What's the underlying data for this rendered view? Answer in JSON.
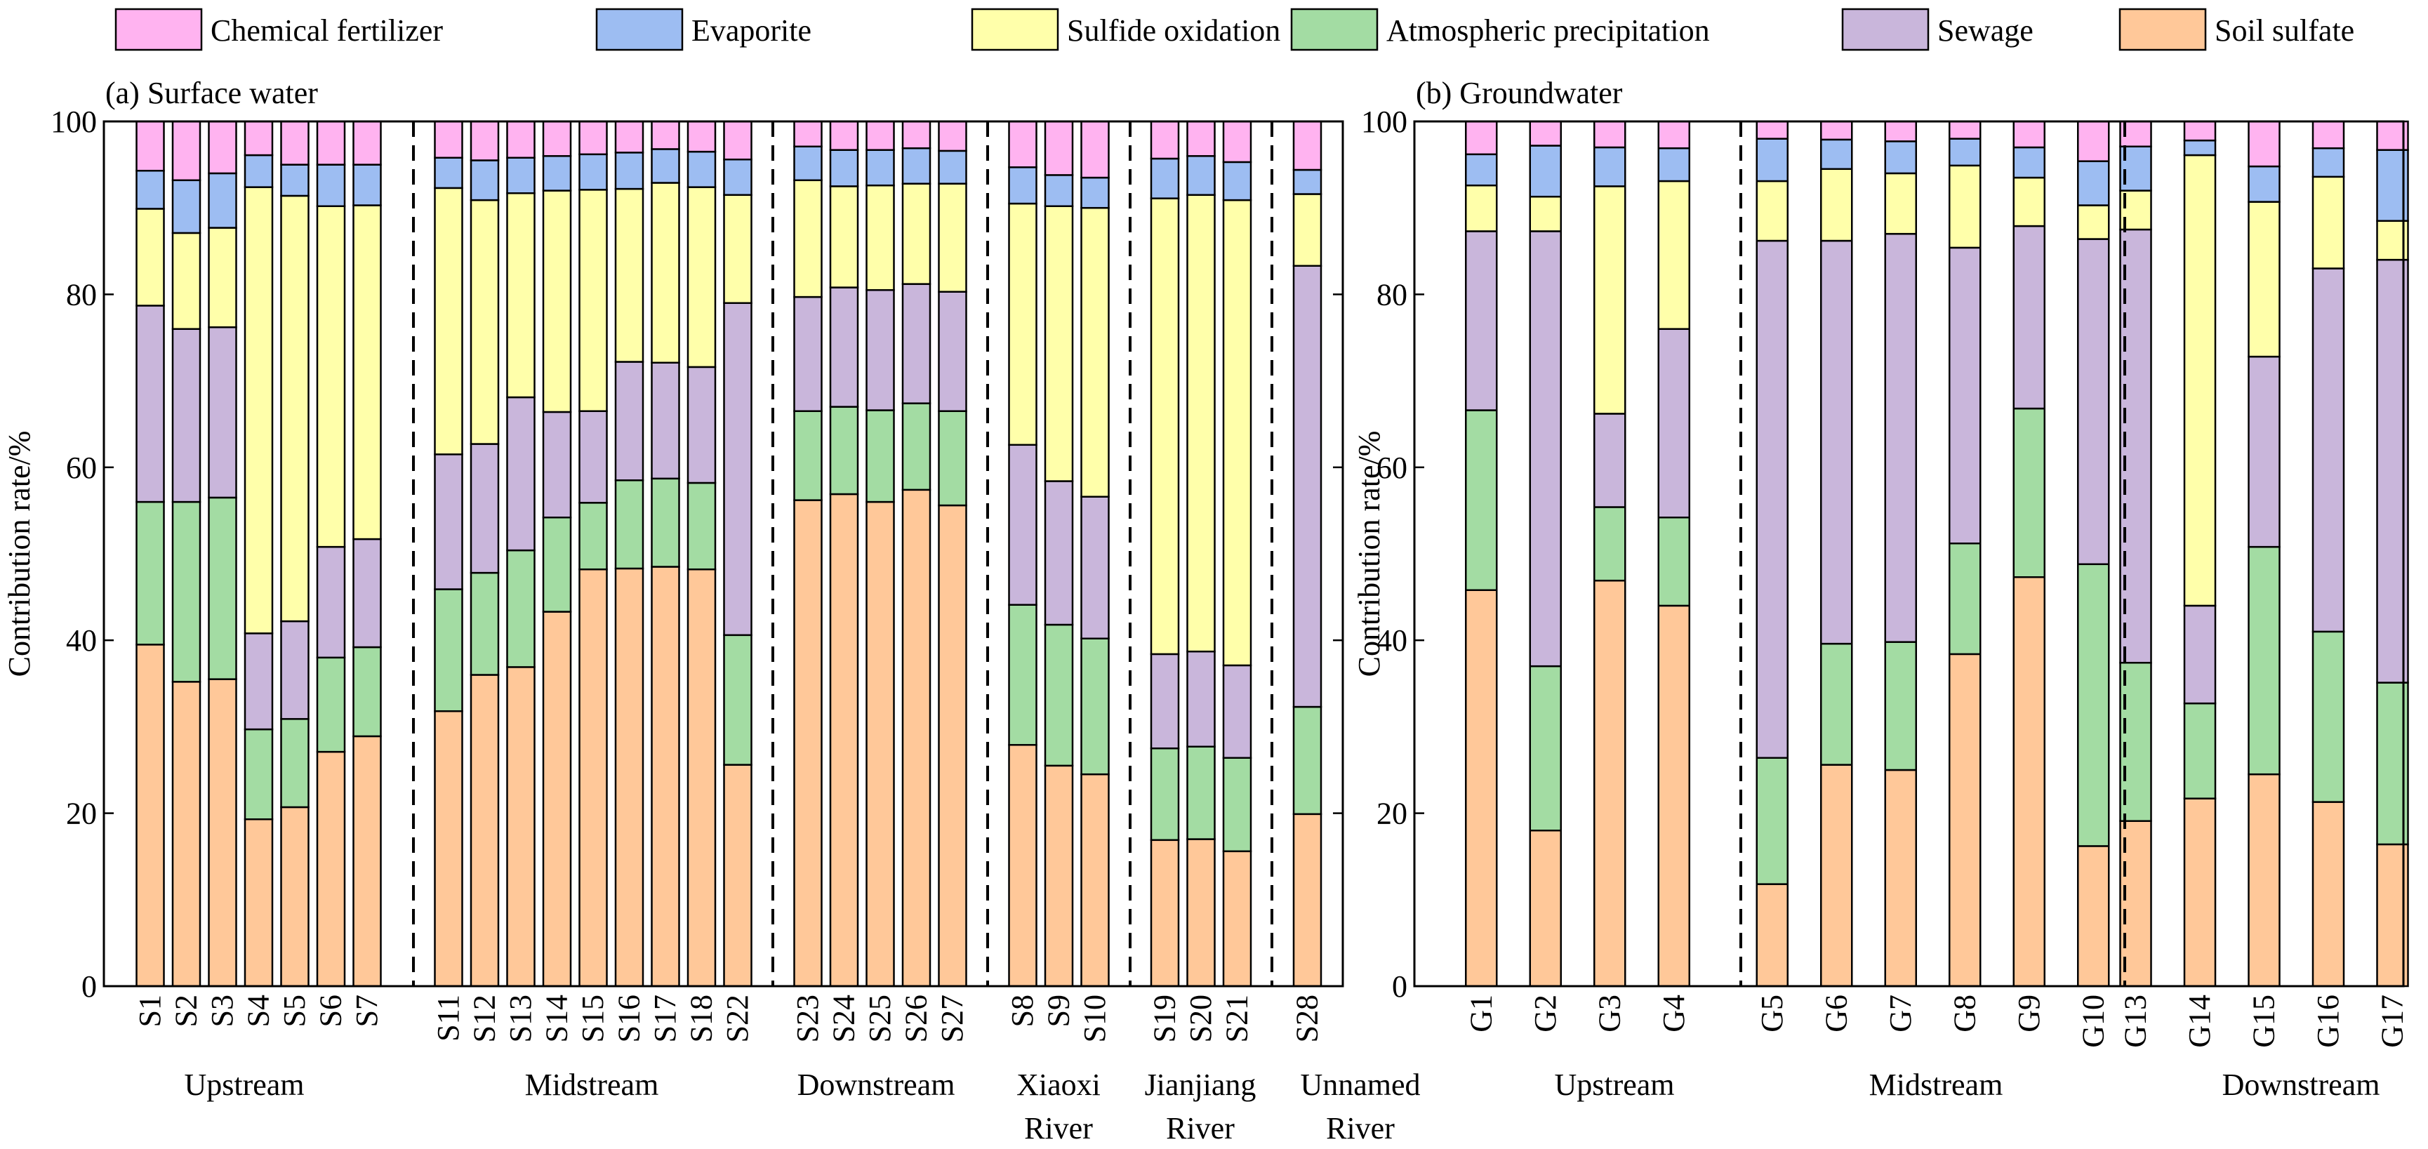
{
  "legend": [
    {
      "name": "Chemical fertilizer",
      "color": "#FFB3F0"
    },
    {
      "name": "Evaporite",
      "color": "#9DBDF2"
    },
    {
      "name": "Sulfide oxidation",
      "color": "#FFFFAA"
    },
    {
      "name": "Atmospheric precipitation",
      "color": "#A3DCA3"
    },
    {
      "name": "Sewage",
      "color": "#C9B6DB"
    },
    {
      "name": "Soil sulfate",
      "color": "#FFC899"
    }
  ],
  "chart_data": [
    {
      "type": "bar",
      "stacked": true,
      "title": "(a) Surface water",
      "ylabel": "Contribution rate/%",
      "ylim": [
        0,
        100
      ],
      "yticks": [
        "0",
        "20",
        "40",
        "60",
        "80",
        "100"
      ],
      "series_order": [
        "Soil sulfate",
        "Atmospheric precipitation",
        "Sewage",
        "Sulfide oxidation",
        "Evaporite",
        "Chemical fertilizer"
      ],
      "groups": [
        {
          "label": [
            "Upstream"
          ],
          "bars": [
            {
              "name": "S1",
              "values": [
                39.5,
                16.5,
                22.7,
                11.2,
                4.4,
                5.7
              ]
            },
            {
              "name": "S2",
              "values": [
                35.2,
                20.8,
                20.0,
                11.1,
                6.1,
                6.8
              ]
            },
            {
              "name": "S3",
              "values": [
                35.5,
                21.0,
                19.7,
                11.5,
                6.3,
                6.0
              ]
            },
            {
              "name": "S4",
              "values": [
                19.3,
                10.4,
                11.1,
                51.6,
                3.7,
                3.9
              ]
            },
            {
              "name": "S5",
              "values": [
                20.7,
                10.2,
                11.3,
                49.2,
                3.6,
                5.0
              ]
            },
            {
              "name": "S6",
              "values": [
                27.1,
                10.9,
                12.8,
                39.4,
                4.8,
                5.0
              ]
            },
            {
              "name": "S7",
              "values": [
                28.9,
                10.3,
                12.5,
                38.6,
                4.7,
                5.0
              ]
            }
          ]
        },
        {
          "label": [
            "Midstream"
          ],
          "bars": [
            {
              "name": "S11",
              "values": [
                31.8,
                14.1,
                15.6,
                30.8,
                3.5,
                4.2
              ]
            },
            {
              "name": "S12",
              "values": [
                36.0,
                11.8,
                14.9,
                28.2,
                4.6,
                4.5
              ]
            },
            {
              "name": "S13",
              "values": [
                36.9,
                13.5,
                17.7,
                23.6,
                4.1,
                4.2
              ]
            },
            {
              "name": "S14",
              "values": [
                43.3,
                10.9,
                12.2,
                25.6,
                4.0,
                4.0
              ]
            },
            {
              "name": "S15",
              "values": [
                48.2,
                7.7,
                10.6,
                25.6,
                4.1,
                3.8
              ]
            },
            {
              "name": "S16",
              "values": [
                48.3,
                10.2,
                13.7,
                20.0,
                4.2,
                3.6
              ]
            },
            {
              "name": "S17",
              "values": [
                48.5,
                10.2,
                13.4,
                20.8,
                3.9,
                3.2
              ]
            },
            {
              "name": "S18",
              "values": [
                48.2,
                10.0,
                13.4,
                20.8,
                4.1,
                3.5
              ]
            },
            {
              "name": "S22",
              "values": [
                25.6,
                15.0,
                38.4,
                12.5,
                4.1,
                4.4
              ]
            }
          ]
        },
        {
          "label": [
            "Downstream"
          ],
          "bars": [
            {
              "name": "S23",
              "values": [
                56.2,
                10.3,
                13.2,
                13.5,
                3.9,
                2.9
              ]
            },
            {
              "name": "S24",
              "values": [
                56.9,
                10.1,
                13.8,
                11.7,
                4.2,
                3.3
              ]
            },
            {
              "name": "S25",
              "values": [
                56.0,
                10.6,
                13.9,
                12.1,
                4.1,
                3.3
              ]
            },
            {
              "name": "S26",
              "values": [
                57.4,
                10.0,
                13.8,
                11.6,
                4.1,
                3.1
              ]
            },
            {
              "name": "S27",
              "values": [
                55.6,
                10.9,
                13.8,
                12.5,
                3.8,
                3.4
              ]
            }
          ]
        },
        {
          "label": [
            "Xiaoxi",
            "River"
          ],
          "bars": [
            {
              "name": "S8",
              "values": [
                27.9,
                16.2,
                18.5,
                27.9,
                4.2,
                5.3
              ]
            },
            {
              "name": "S9",
              "values": [
                25.5,
                16.3,
                16.6,
                31.8,
                3.6,
                6.2
              ]
            },
            {
              "name": "S10",
              "values": [
                24.5,
                15.7,
                16.4,
                33.4,
                3.5,
                6.5
              ]
            }
          ]
        },
        {
          "label": [
            "Jianjiang",
            "River"
          ],
          "bars": [
            {
              "name": "S19",
              "values": [
                16.9,
                10.6,
                10.9,
                52.7,
                4.6,
                4.3
              ]
            },
            {
              "name": "S20",
              "values": [
                17.0,
                10.7,
                11.0,
                52.8,
                4.5,
                4.0
              ]
            },
            {
              "name": "S21",
              "values": [
                15.6,
                10.8,
                10.7,
                53.8,
                4.4,
                4.7
              ]
            }
          ]
        },
        {
          "label": [
            "Unnamed",
            "River"
          ],
          "bars": [
            {
              "name": "S28",
              "values": [
                19.9,
                12.4,
                51.0,
                8.3,
                2.8,
                5.6
              ]
            }
          ]
        }
      ]
    },
    {
      "type": "bar",
      "stacked": true,
      "title": "(b) Groundwater",
      "ylabel": "Contribution rate/%",
      "ylim": [
        0,
        100
      ],
      "yticks": [
        "0",
        "20",
        "40",
        "60",
        "80",
        "100"
      ],
      "series_order": [
        "Soil sulfate",
        "Atmospheric precipitation",
        "Sewage",
        "Sulfide oxidation",
        "Evaporite",
        "Chemical fertilizer"
      ],
      "groups": [
        {
          "label": [
            "Upstream"
          ],
          "bars": [
            {
              "name": "G1",
              "values": [
                45.8,
                20.8,
                20.7,
                5.3,
                3.6,
                3.8
              ]
            },
            {
              "name": "G2",
              "values": [
                18.0,
                19.0,
                50.3,
                4.0,
                5.9,
                2.8
              ]
            },
            {
              "name": "G3",
              "values": [
                46.9,
                8.5,
                10.8,
                26.3,
                4.5,
                3.0
              ]
            },
            {
              "name": "G4",
              "values": [
                44.0,
                10.2,
                21.8,
                17.1,
                3.8,
                3.1
              ]
            }
          ]
        },
        {
          "label": [
            "Midstream"
          ],
          "bars": [
            {
              "name": "G5",
              "values": [
                11.8,
                14.6,
                59.8,
                6.9,
                4.9,
                2.0
              ]
            },
            {
              "name": "G6",
              "values": [
                25.6,
                14.0,
                46.6,
                8.3,
                3.4,
                2.1
              ]
            },
            {
              "name": "G7",
              "values": [
                25.0,
                14.8,
                47.2,
                7.0,
                3.7,
                2.3
              ]
            },
            {
              "name": "G8",
              "values": [
                38.4,
                12.8,
                34.2,
                9.5,
                3.1,
                2.0
              ]
            },
            {
              "name": "G9",
              "values": [
                47.3,
                19.5,
                21.1,
                5.6,
                3.5,
                3.0
              ]
            },
            {
              "name": "G10",
              "values": [
                16.2,
                32.6,
                37.6,
                3.9,
                5.1,
                4.6
              ]
            }
          ]
        },
        {
          "label": [
            "Downstream"
          ],
          "bars": [
            {
              "name": "G13",
              "values": [
                19.1,
                18.3,
                50.1,
                4.5,
                5.1,
                2.9
              ]
            },
            {
              "name": "G14",
              "values": [
                21.7,
                11.0,
                11.3,
                52.1,
                1.7,
                2.2
              ]
            },
            {
              "name": "G15",
              "values": [
                24.5,
                26.3,
                22.0,
                17.9,
                4.1,
                5.2
              ]
            },
            {
              "name": "G16",
              "values": [
                21.3,
                19.7,
                42.0,
                10.6,
                3.3,
                3.1
              ]
            },
            {
              "name": "G17",
              "values": [
                16.4,
                18.7,
                48.9,
                4.5,
                8.2,
                3.3
              ]
            }
          ]
        }
      ]
    }
  ]
}
